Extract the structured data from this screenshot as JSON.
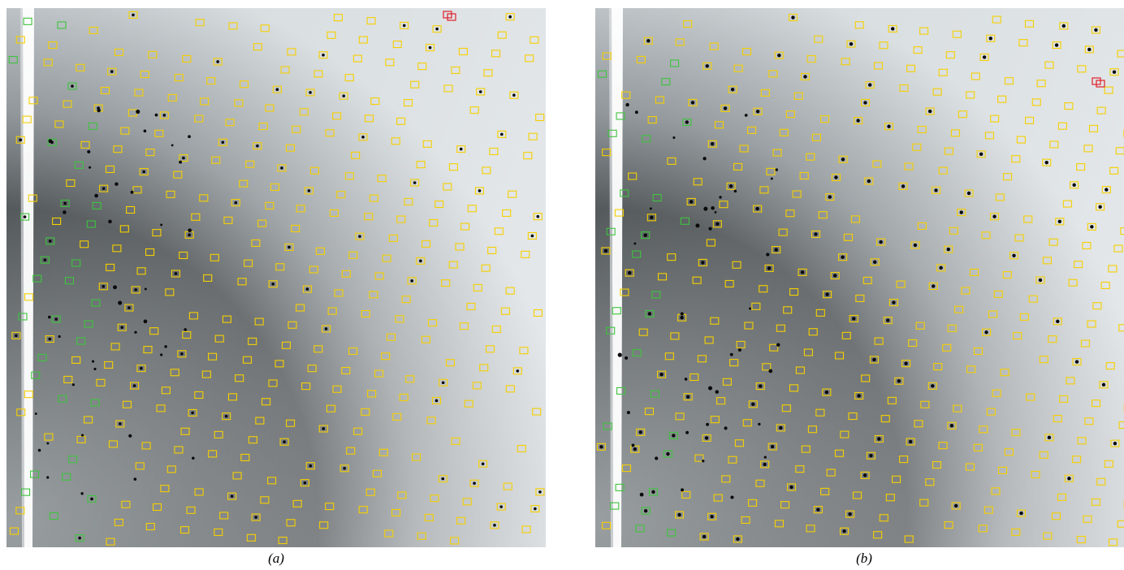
{
  "figure": {
    "panels": [
      {
        "id": "a",
        "caption": "(a)"
      },
      {
        "id": "b",
        "caption": "(b)"
      }
    ],
    "colors": {
      "predicted_spot": "#f5d000",
      "edge_spot": "#3ec43e",
      "overlap_spot": "#e0202a",
      "background_light": "#d4dadd",
      "background_dark": "#4e5356",
      "beamstop": "#ffffff"
    },
    "icons": [
      "spot-box-icon"
    ]
  }
}
